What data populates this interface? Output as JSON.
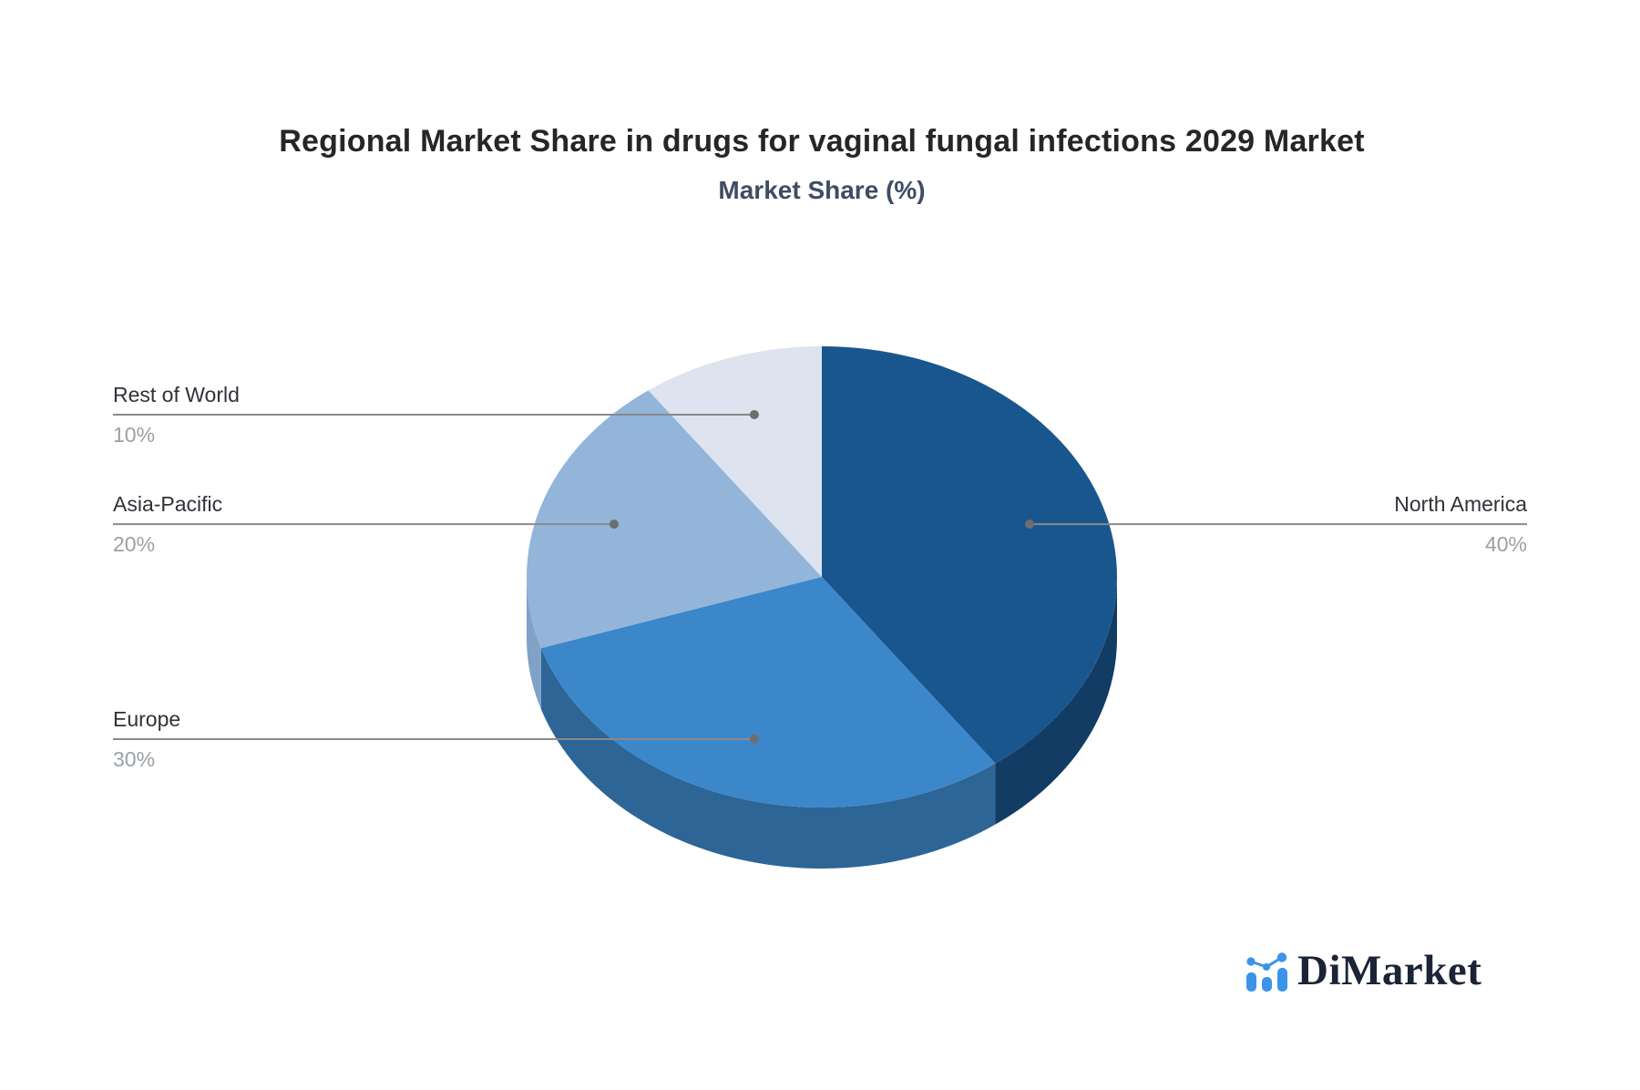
{
  "header": {
    "title": "Regional Market Share in drugs for vaginal fungal infections 2029 Market",
    "subtitle": "Market Share (%)"
  },
  "chart_data": {
    "type": "pie",
    "style": "3d",
    "title": "Regional Market Share in drugs for vaginal fungal infections 2029 Market",
    "subtitle": "Market Share (%)",
    "unit": "%",
    "start_angle_deg": 0,
    "direction": "clockwise",
    "legend": "none",
    "slices": [
      {
        "label": "North America",
        "value": 40,
        "display": "40%",
        "color": "#1A568E",
        "side_color": "#123C64",
        "label_side": "right"
      },
      {
        "label": "Europe",
        "value": 30,
        "display": "30%",
        "color": "#3C87CA",
        "side_color": "#2D6596",
        "label_side": "left"
      },
      {
        "label": "Asia-Pacific",
        "value": 20,
        "display": "20%",
        "color": "#92B5D9",
        "side_color": "#7FA2C6",
        "label_side": "left"
      },
      {
        "label": "Rest of World",
        "value": 10,
        "display": "10%",
        "color": "#DDE3EF",
        "side_color": "#B9C4D6",
        "label_side": "left"
      }
    ],
    "connector_color": "#8a8a8a",
    "connector_dot_color": "#6e6e6e",
    "label_color": "#2f3338",
    "percent_color": "#9aa0a6"
  },
  "branding": {
    "logo_text": "DiMarket",
    "logo_icon": "bar-line-chart-icon",
    "logo_icon_color": "#3b94ea",
    "logo_text_color": "#1b2436"
  }
}
